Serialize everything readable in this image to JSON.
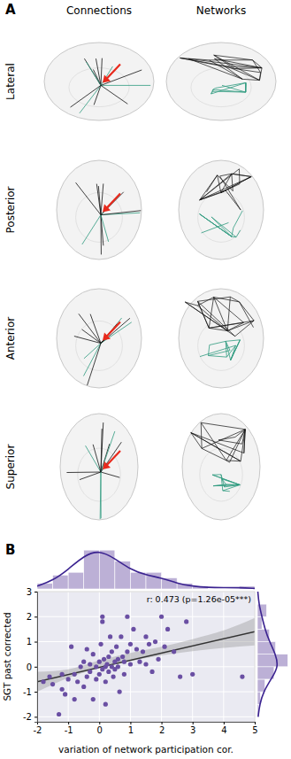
{
  "panel_a": {
    "label": "A",
    "columns": [
      "Connections",
      "Networks"
    ],
    "rows": [
      "Lateral",
      "Posterior",
      "Anterior",
      "Superior"
    ]
  },
  "chart_data": {
    "type": "scatter",
    "panel_label": "B",
    "annotation": "r: 0.473 (p=1.26e-05***)",
    "x_label": "variation of network participation cor.",
    "y_label": "SGT past corrected",
    "x": [
      -1.3,
      -1.5,
      -1.2,
      -1.1,
      -1.0,
      -1.2,
      -0.9,
      -0.8,
      -0.7,
      -0.6,
      -0.5,
      -0.5,
      -0.4,
      -0.3,
      -0.3,
      -0.2,
      -0.2,
      -0.1,
      -0.1,
      0.0,
      0.0,
      0.05,
      0.1,
      0.1,
      0.1,
      0.15,
      0.2,
      0.2,
      0.25,
      0.3,
      0.3,
      0.35,
      0.4,
      0.4,
      0.45,
      0.5,
      0.5,
      0.55,
      0.6,
      0.6,
      0.65,
      0.7,
      0.75,
      0.8,
      0.8,
      0.9,
      0.9,
      1.0,
      1.0,
      1.1,
      1.2,
      1.3,
      1.4,
      1.5,
      1.5,
      1.6,
      1.7,
      1.8,
      1.9,
      2.0,
      2.1,
      2.2,
      2.4,
      2.6,
      2.8,
      3.0,
      4.6,
      -1.8,
      -1.6,
      -0.8,
      0.2,
      -0.4
    ],
    "y": [
      -1.9,
      -0.7,
      -0.9,
      -1.1,
      -0.5,
      -0.3,
      0.8,
      -0.3,
      -0.6,
      0.0,
      -0.8,
      0.2,
      -0.4,
      -0.2,
      0.1,
      -1.3,
      0.5,
      -0.5,
      0.0,
      0.2,
      -0.3,
      0.9,
      1.8,
      2.0,
      -0.1,
      0.3,
      0.0,
      -0.6,
      0.1,
      0.4,
      -0.2,
      1.2,
      0.6,
      0.0,
      -0.4,
      0.2,
      -0.1,
      0.8,
      0.3,
      0.0,
      -1.0,
      1.2,
      0.4,
      0.2,
      -0.3,
      0.6,
      2.0,
      0.9,
      0.1,
      1.5,
      0.7,
      0.2,
      0.6,
      1.2,
      0.1,
      0.9,
      -0.2,
      1.0,
      0.3,
      2.0,
      0.8,
      1.5,
      0.6,
      -0.4,
      1.8,
      -0.3,
      -0.4,
      -0.6,
      -0.4,
      -1.3,
      -1.5,
      0.7
    ],
    "fit": {
      "x": [
        -2,
        5
      ],
      "y": [
        -0.6,
        1.4
      ]
    },
    "band": {
      "x": [
        -2,
        -1,
        0,
        1,
        2,
        3,
        4,
        5
      ],
      "lower": [
        -1.0,
        -0.45,
        -0.05,
        0.22,
        0.45,
        0.62,
        0.75,
        0.85
      ],
      "upper": [
        -0.2,
        -0.1,
        0.25,
        0.55,
        0.8,
        1.1,
        1.45,
        1.95
      ]
    },
    "marginal_x": {
      "bins": [
        -2,
        -1.5,
        -1,
        -0.5,
        0,
        0.5,
        1,
        1.5,
        2,
        2.5,
        3,
        3.5,
        4,
        4.5,
        5
      ],
      "counts": [
        2,
        5,
        6,
        14,
        14,
        10,
        6,
        6,
        4,
        2,
        1,
        0,
        0,
        1
      ],
      "kde_x": [
        -2,
        -1.5,
        -1,
        -0.5,
        0,
        0.5,
        1,
        1.5,
        2,
        2.5,
        3,
        3.5,
        4,
        4.5,
        5
      ],
      "kde_y": [
        1,
        3,
        7,
        12,
        14,
        11,
        7,
        5,
        4,
        2,
        1,
        0.5,
        0.5,
        0.5,
        0.2
      ],
      "lim": [
        0,
        15
      ]
    },
    "marginal_y": {
      "bins": [
        -2,
        -1.5,
        -1,
        -0.5,
        0,
        0.5,
        1,
        1.5,
        2,
        2.5
      ],
      "counts": [
        1,
        2,
        5,
        11,
        20,
        12,
        8,
        3,
        6
      ],
      "kde_x": [
        -2,
        -1.5,
        -1,
        -0.5,
        0,
        0.5,
        1,
        1.5,
        2,
        2.5,
        3
      ],
      "kde_y": [
        0.5,
        1.5,
        4,
        9,
        14,
        12,
        8,
        5,
        3,
        1,
        0.3
      ],
      "lim": [
        0,
        21
      ]
    },
    "color": "#6a4fa3",
    "xlim": [
      -2,
      5
    ],
    "xticks": [
      -2,
      -1,
      0,
      1,
      2,
      3,
      4,
      5
    ],
    "ylim": [
      -2.2,
      3
    ],
    "yticks": [
      -2,
      -1,
      0,
      1,
      2,
      3
    ],
    "grid": true
  }
}
